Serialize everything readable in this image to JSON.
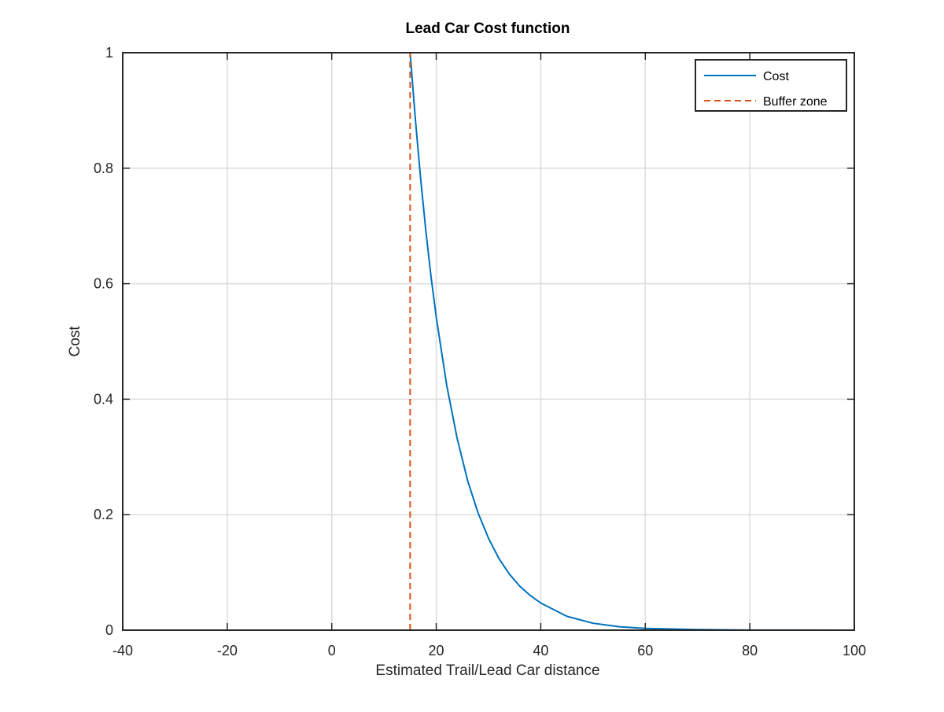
{
  "chart_data": {
    "type": "line",
    "title": "Lead Car Cost function",
    "xlabel": "Estimated Trail/Lead Car distance",
    "ylabel": "Cost",
    "xlim": [
      -40,
      100
    ],
    "ylim": [
      0,
      1
    ],
    "xticks": [
      -40,
      -20,
      0,
      20,
      40,
      60,
      80,
      100
    ],
    "xtick_labels": [
      "-40",
      "-20",
      "0",
      "20",
      "40",
      "60",
      "80",
      "100"
    ],
    "yticks": [
      0,
      0.2,
      0.4,
      0.6,
      0.8,
      1
    ],
    "ytick_labels": [
      "0",
      "0.2",
      "0.4",
      "0.6",
      "0.8",
      "1"
    ],
    "grid": true,
    "legend_position": "top-right",
    "series": [
      {
        "name": "Cost",
        "style": "solid",
        "color": "#0072bd",
        "x": [
          -30,
          -20,
          -10,
          0,
          10,
          15,
          16,
          17,
          18,
          19,
          20,
          22,
          24,
          26,
          28,
          30,
          32,
          34,
          36,
          38,
          40,
          45,
          50,
          55,
          60,
          70,
          80,
          90,
          100
        ],
        "y": [
          1,
          1,
          1,
          1,
          1,
          1,
          0.885,
          0.783,
          0.692,
          0.612,
          0.542,
          0.424,
          0.332,
          0.259,
          0.203,
          0.159,
          0.124,
          0.097,
          0.076,
          0.06,
          0.047,
          0.024,
          0.012,
          0.006,
          0.003,
          0.001,
          0.0002,
          0.0001,
          0
        ]
      },
      {
        "name": "Buffer zone",
        "style": "dashed",
        "color": "#d95319",
        "x": [
          15,
          15
        ],
        "y": [
          0,
          1
        ]
      }
    ]
  }
}
